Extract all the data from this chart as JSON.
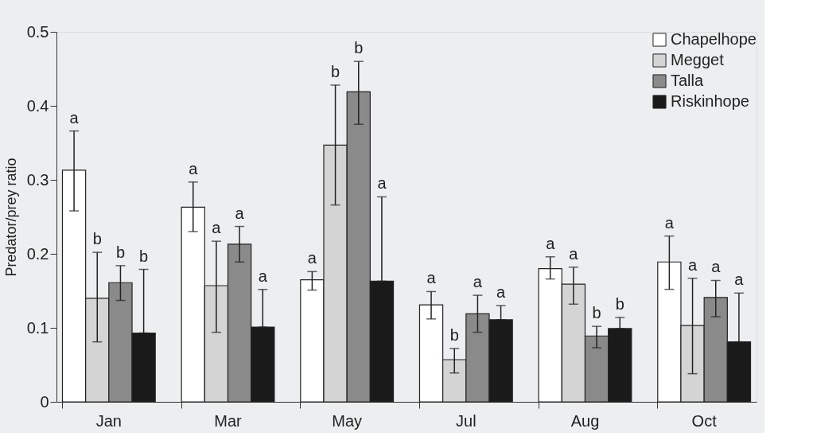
{
  "chart_data": {
    "type": "bar",
    "ylabel": "Predator/prey ratio",
    "categories": [
      "Jan",
      "Mar",
      "May",
      "Jul",
      "Aug",
      "Oct"
    ],
    "ylim": [
      0,
      0.5
    ],
    "yticks": [
      {
        "value": 0,
        "label": "0"
      },
      {
        "value": 0.1,
        "label": "0.1"
      },
      {
        "value": 0.2,
        "label": "0.2"
      },
      {
        "value": 0.3,
        "label": "0.3"
      },
      {
        "value": 0.4,
        "label": "0.4"
      },
      {
        "value": 0.5,
        "label": "0.5"
      }
    ],
    "grid": false,
    "legend": "top right",
    "series": [
      {
        "name": "Chapelhope",
        "color": "#ffffff",
        "values": [
          0.313,
          0.263,
          0.165,
          0.131,
          0.18,
          0.189
        ],
        "errors": [
          [
            0.258,
            0.366
          ],
          [
            0.23,
            0.297
          ],
          [
            0.151,
            0.176
          ],
          [
            0.112,
            0.149
          ],
          [
            0.166,
            0.196
          ],
          [
            0.152,
            0.224
          ]
        ]
      },
      {
        "name": "Megget",
        "color": "#d4d4d4",
        "values": [
          0.14,
          0.157,
          0.347,
          0.057,
          0.159,
          0.103
        ],
        "errors": [
          [
            0.081,
            0.202
          ],
          [
            0.094,
            0.217
          ],
          [
            0.266,
            0.428
          ],
          [
            0.039,
            0.072
          ],
          [
            0.132,
            0.182
          ],
          [
            0.038,
            0.167
          ]
        ]
      },
      {
        "name": "Talla",
        "color": "#8a8a8a",
        "values": [
          0.161,
          0.213,
          0.419,
          0.119,
          0.089,
          0.141
        ],
        "errors": [
          [
            0.137,
            0.184
          ],
          [
            0.189,
            0.237
          ],
          [
            0.375,
            0.46
          ],
          [
            0.094,
            0.144
          ],
          [
            0.073,
            0.102
          ],
          [
            0.115,
            0.164
          ]
        ]
      },
      {
        "name": "Riskinhope",
        "color": "#1a1a1a",
        "values": [
          0.093,
          0.101,
          0.163,
          0.111,
          0.099,
          0.081
        ],
        "errors": [
          [
            0.093,
            0.179
          ],
          [
            0.101,
            0.152
          ],
          [
            0.163,
            0.277
          ],
          [
            0.111,
            0.13
          ],
          [
            0.099,
            0.114
          ],
          [
            0.081,
            0.147
          ]
        ]
      }
    ],
    "annotations": [
      "a",
      "b",
      "b",
      "b",
      "a",
      "a",
      "a",
      "a",
      "a",
      "b",
      "b",
      "a",
      "a",
      "b",
      "a",
      "a",
      "a",
      "a",
      "b",
      "b",
      "a",
      "a",
      "a",
      "a"
    ]
  }
}
